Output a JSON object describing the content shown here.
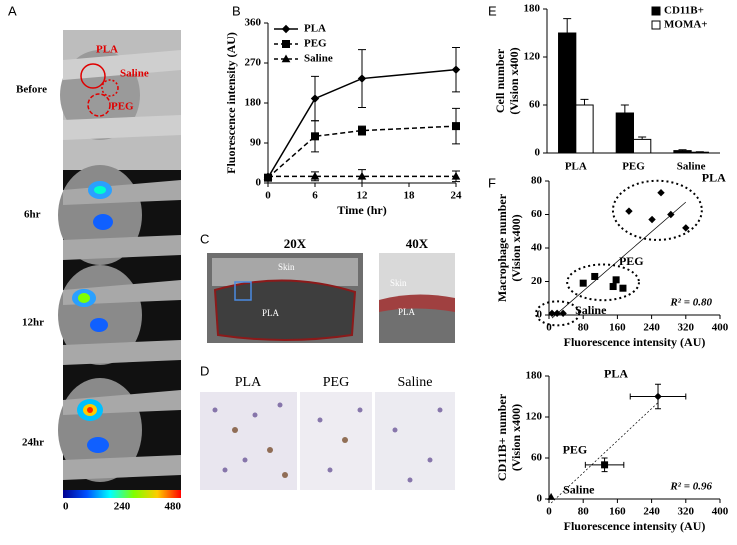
{
  "panel_labels": [
    "A",
    "B",
    "C",
    "D",
    "E",
    "F"
  ],
  "imaging": {
    "timepoints": [
      "Before",
      "6hr",
      "12hr",
      "24hr"
    ],
    "region_labels": [
      "PLA",
      "Saline",
      "PEG"
    ],
    "colorbar": {
      "range": [
        0,
        480
      ],
      "ticks": [
        0,
        240,
        480
      ]
    }
  },
  "histology": {
    "magnifications": [
      "20X",
      "40X"
    ],
    "labels_20x": [
      "Skin",
      "PLA"
    ],
    "labels_40x": [
      "Skin",
      "PLA"
    ]
  },
  "staining": {
    "groups": [
      "PLA",
      "PEG",
      "Saline"
    ]
  },
  "chart_data": [
    {
      "type": "line",
      "xlabel": "Time (hr)",
      "ylabel": [
        "Fluorescence intensity (AU)"
      ],
      "x": [
        0,
        6,
        12,
        24
      ],
      "xlim": [
        0,
        24
      ],
      "xticks": [
        0,
        6,
        12,
        18,
        24
      ],
      "ylim": [
        0,
        360
      ],
      "yticks": [
        0,
        90,
        180,
        270,
        360
      ],
      "legend": "upper left",
      "series": [
        {
          "name": "PLA",
          "color": "#000000",
          "marker": "diamond",
          "dash": "solid",
          "values": [
            12,
            190,
            235,
            255
          ],
          "errors": [
            null,
            50,
            65,
            50
          ]
        },
        {
          "name": "PEG",
          "color": "#000000",
          "marker": "square",
          "dash": "dashed",
          "values": [
            12,
            105,
            118,
            128
          ],
          "errors": [
            null,
            35,
            10,
            40
          ]
        },
        {
          "name": "Saline",
          "color": "#000000",
          "marker": "triangle",
          "dash": "dashed",
          "values": [
            15,
            15,
            15,
            15
          ],
          "errors": [
            null,
            10,
            15,
            12
          ]
        }
      ]
    },
    {
      "type": "bar",
      "ylabel": [
        "Cell number",
        "(Vision x400)"
      ],
      "categories": [
        "PLA",
        "PEG",
        "Saline"
      ],
      "ylim": [
        0,
        180
      ],
      "yticks": [
        0,
        60,
        120,
        180
      ],
      "legend": "upper right",
      "series": [
        {
          "name": "CD11B+",
          "color": "#000000",
          "values": [
            150,
            50,
            3
          ],
          "errors": [
            18,
            10,
            1
          ]
        },
        {
          "name": "MOMA+",
          "color": "#ffffff",
          "values": [
            60,
            17,
            1
          ],
          "errors": [
            7,
            3,
            0.5
          ]
        }
      ]
    },
    {
      "type": "scatter",
      "xlabel": "Fluorescence intensity (AU)",
      "ylabel": [
        "Macrophage number",
        "(Vision x400)"
      ],
      "xlim": [
        0,
        400
      ],
      "xticks": [
        0,
        80,
        160,
        240,
        320,
        400
      ],
      "ylim": [
        0,
        80
      ],
      "yticks": [
        0,
        20,
        40,
        60,
        80
      ],
      "annotation": "R² = 0.80",
      "series": [
        {
          "name": "PLA",
          "marker": "diamond",
          "x": [
            187,
            262,
            241,
            285,
            320
          ],
          "values": [
            62,
            73,
            57,
            60,
            52
          ]
        },
        {
          "name": "PEG",
          "marker": "square",
          "x": [
            80,
            107,
            150,
            157,
            173
          ],
          "values": [
            19,
            23,
            17,
            21,
            16
          ]
        },
        {
          "name": "Saline",
          "marker": "diamond",
          "x": [
            7,
            19,
            33
          ],
          "values": [
            1,
            1,
            1
          ]
        }
      ]
    },
    {
      "type": "scatter",
      "xlabel": "Fluorescence intensity (AU)",
      "ylabel": [
        "CD11B+ number",
        "(Vision x400)"
      ],
      "xlim": [
        0,
        400
      ],
      "xticks": [
        0,
        80,
        160,
        240,
        320,
        400
      ],
      "ylim": [
        0,
        180
      ],
      "yticks": [
        0,
        60,
        120,
        180
      ],
      "annotation": "R² = 0.96",
      "series": [
        {
          "name": "PLA",
          "marker": "diamond",
          "x": [
            255
          ],
          "values": [
            150
          ],
          "xerr": [
            65
          ],
          "yerr": [
            18
          ]
        },
        {
          "name": "PEG",
          "marker": "square",
          "x": [
            130
          ],
          "values": [
            50
          ],
          "xerr": [
            45
          ],
          "yerr": [
            10
          ]
        },
        {
          "name": "Saline",
          "marker": "triangle",
          "x": [
            5
          ],
          "values": [
            3
          ],
          "xerr": [
            null
          ],
          "yerr": [
            null
          ]
        }
      ]
    }
  ]
}
